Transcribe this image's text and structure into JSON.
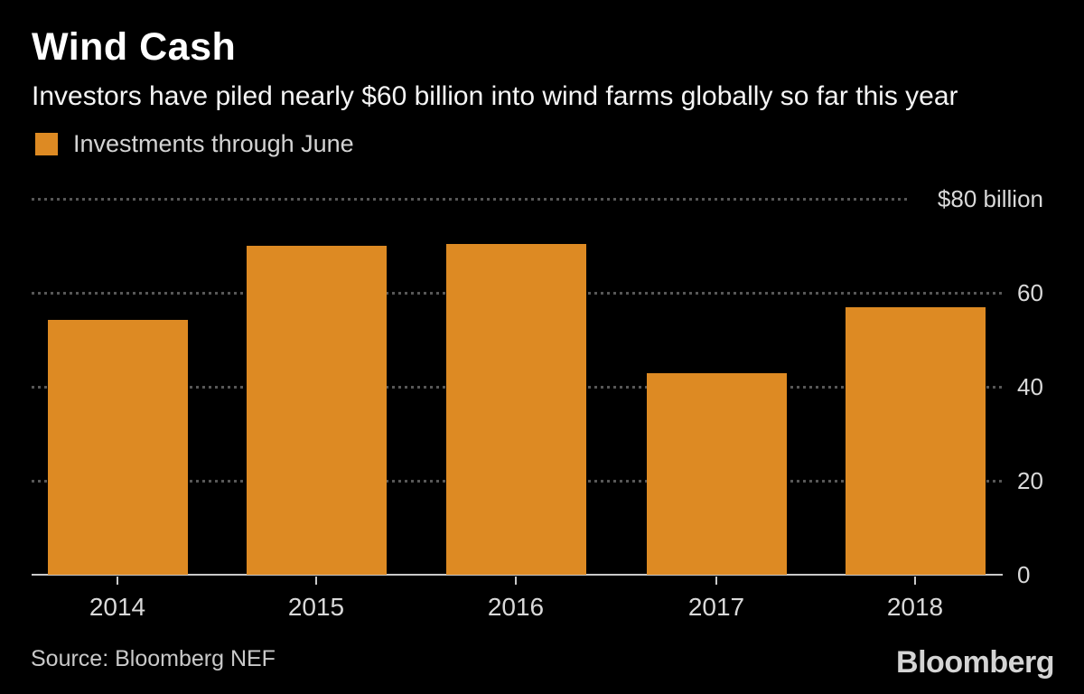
{
  "header": {
    "title": "Wind Cash",
    "subtitle": "Investors have piled nearly $60 billion into wind farms globally so far this year"
  },
  "legend": {
    "label": "Investments through June",
    "swatch_color": "#DD8A23"
  },
  "chart_data": {
    "type": "bar",
    "categories": [
      "2014",
      "2015",
      "2016",
      "2017",
      "2018"
    ],
    "values": [
      54.3,
      70.0,
      70.4,
      42.9,
      57.0
    ],
    "series_name": "Investments through June",
    "title": "Wind Cash",
    "subtitle": "Investors have piled nearly $60 billion into wind farms globally so far this year",
    "xlabel": "",
    "ylabel": "",
    "ylim": [
      0,
      80
    ],
    "ytick_values": [
      80,
      60,
      40,
      20,
      0
    ],
    "ytick_labels": [
      "$80 billion",
      "60",
      "40",
      "20",
      "0"
    ],
    "ytick_side": "right",
    "grid": "horizontal-dotted",
    "legend_position": "top-left",
    "bar_color": "#DD8A23",
    "background_color": "#000000"
  },
  "footer": {
    "source": "Source: Bloomberg NEF",
    "brand": "Bloomberg"
  },
  "colors": {
    "background": "#000000",
    "bar": "#DD8A23",
    "title_text": "#ffffff",
    "subtitle_text": "#f5f5f5",
    "axis_text": "#d9d9d9",
    "gridline": "#575757",
    "axis_line": "#c9c9c9",
    "source_text": "#c9c9c9",
    "brand_text": "#d4d4d4"
  }
}
